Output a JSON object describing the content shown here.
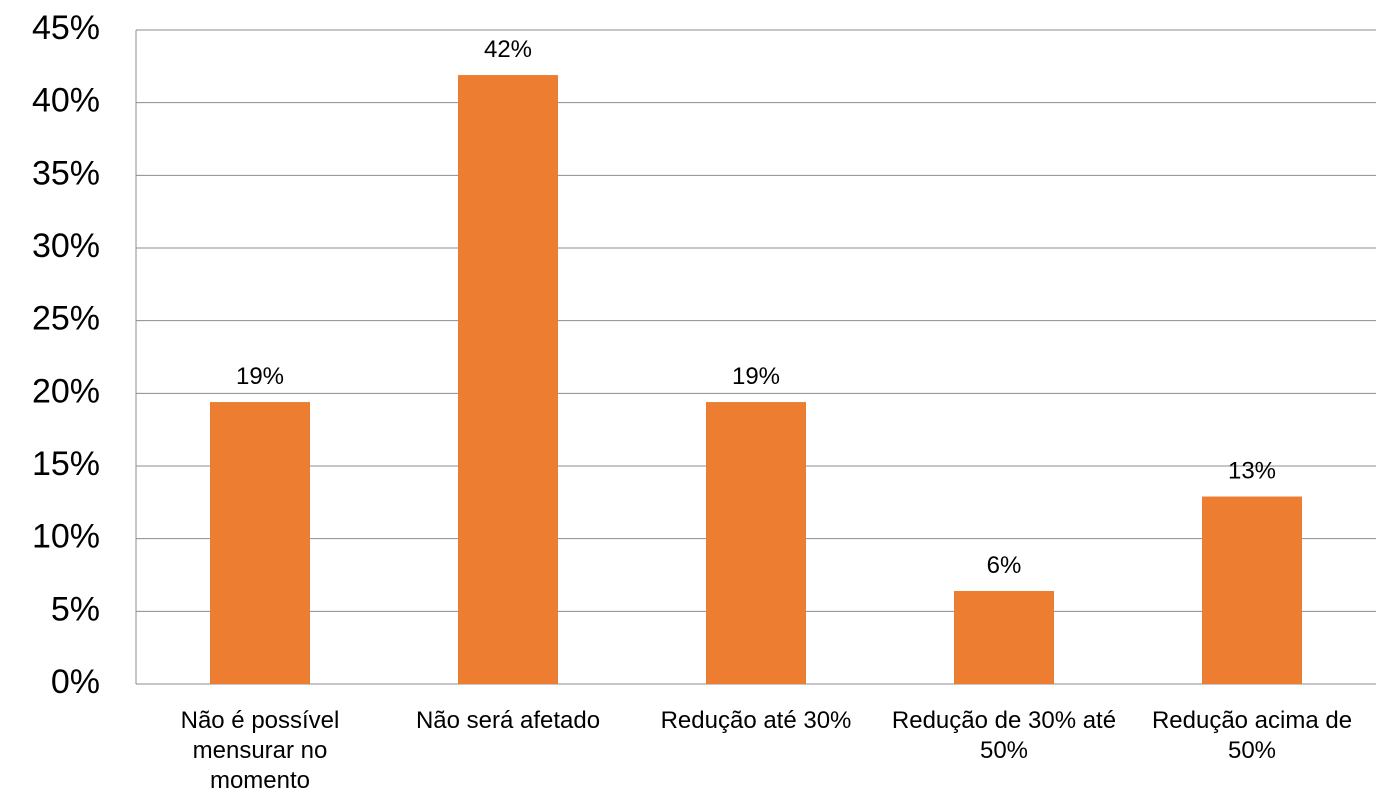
{
  "chart_data": {
    "type": "bar",
    "categories": [
      "Não é possível mensurar no momento",
      "Não será afetado",
      "Redução até 30%",
      "Redução de 30% até 50%",
      "Redução acima de 50%"
    ],
    "values": [
      19.4,
      41.9,
      19.4,
      6.4,
      12.9
    ],
    "value_labels": [
      "19%",
      "42%",
      "19%",
      "6%",
      "13%"
    ],
    "color": "#ed7d31",
    "ylim": [
      0,
      45
    ],
    "yticks": [
      {
        "value": 0,
        "label": "0%"
      },
      {
        "value": 5,
        "label": "5%"
      },
      {
        "value": 10,
        "label": "10%"
      },
      {
        "value": 15,
        "label": "15%"
      },
      {
        "value": 20,
        "label": "20%"
      },
      {
        "value": 25,
        "label": "25%"
      },
      {
        "value": 30,
        "label": "30%"
      },
      {
        "value": 35,
        "label": "35%"
      },
      {
        "value": 40,
        "label": "40%"
      },
      {
        "value": 45,
        "label": "45%"
      }
    ],
    "grid": true
  }
}
